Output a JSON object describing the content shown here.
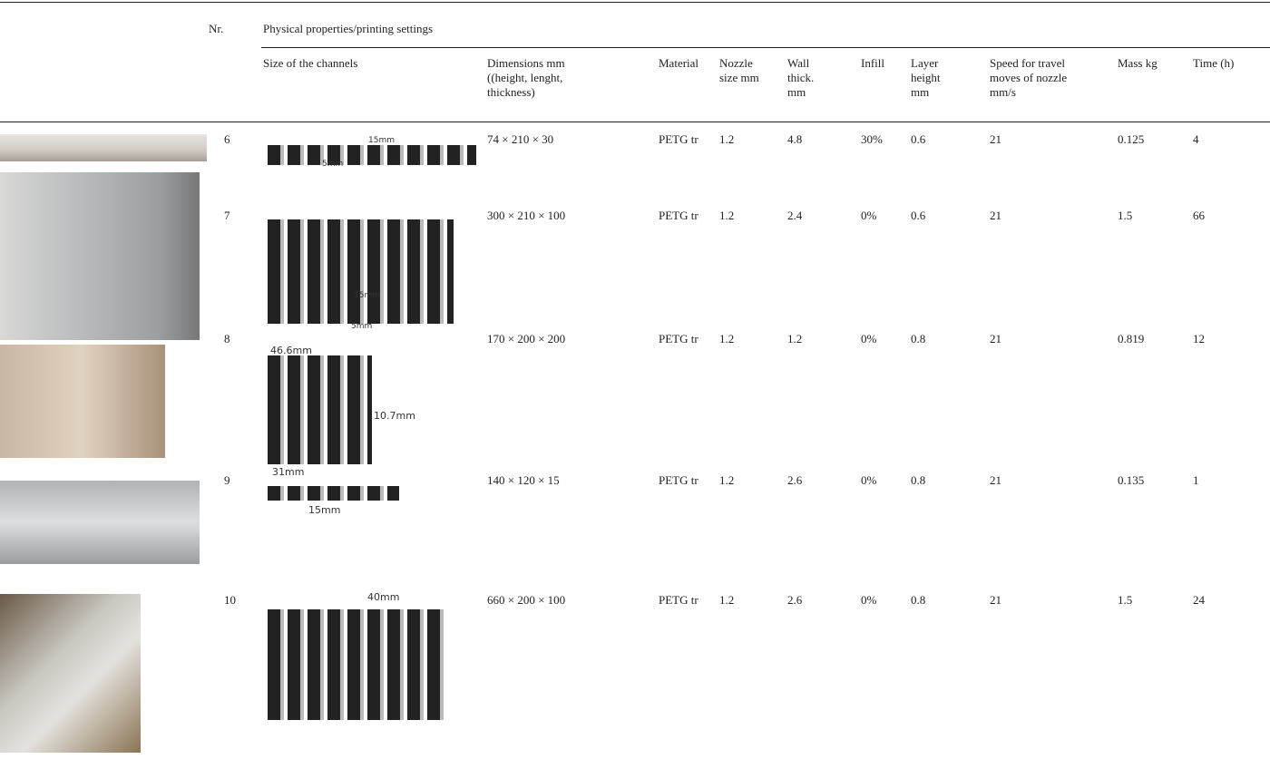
{
  "table": {
    "nr_header": "Nr.",
    "group_header": "Physical properties/printing settings",
    "columns": [
      "Size of the channels",
      "Dimensions mm ((height, lenght, thickness)",
      "Material",
      "Nozzle size mm",
      "Wall thick. mm",
      "Infill",
      "Layer height mm",
      "Speed for travel moves of nozzle mm/s",
      "Mass kg",
      "Time (h)"
    ],
    "rows": [
      {
        "nr": "6",
        "channel_labels": [
          "15mm",
          "5mm"
        ],
        "cells": [
          "74 × 210 × 30",
          "PETG tr",
          "1.2",
          "4.8",
          "30%",
          "0.6",
          "21",
          "0.125",
          "4"
        ]
      },
      {
        "nr": "7",
        "channel_labels": [
          "15mm",
          "5mm"
        ],
        "cells": [
          "300 × 210 × 100",
          "PETG tr",
          "1.2",
          "2.4",
          "0%",
          "0.6",
          "21",
          "1.5",
          "66"
        ]
      },
      {
        "nr": "8",
        "channel_labels": [
          "46.6mm",
          "10.7mm",
          "31mm"
        ],
        "cells": [
          "170 × 200 × 200",
          "PETG tr",
          "1.2",
          "1.2",
          "0%",
          "0.8",
          "21",
          "0.819",
          "12"
        ]
      },
      {
        "nr": "9",
        "channel_labels": [
          "15mm"
        ],
        "cells": [
          "140 × 120 × 15",
          "PETG tr",
          "1.2",
          "2.6",
          "0%",
          "0.8",
          "21",
          "0.135",
          "1"
        ]
      },
      {
        "nr": "10",
        "channel_labels": [
          "40mm"
        ],
        "cells": [
          "660 × 200 × 100",
          "PETG tr",
          "1.2",
          "2.6",
          "0%",
          "0.8",
          "21",
          "1.5",
          "24"
        ]
      }
    ]
  }
}
